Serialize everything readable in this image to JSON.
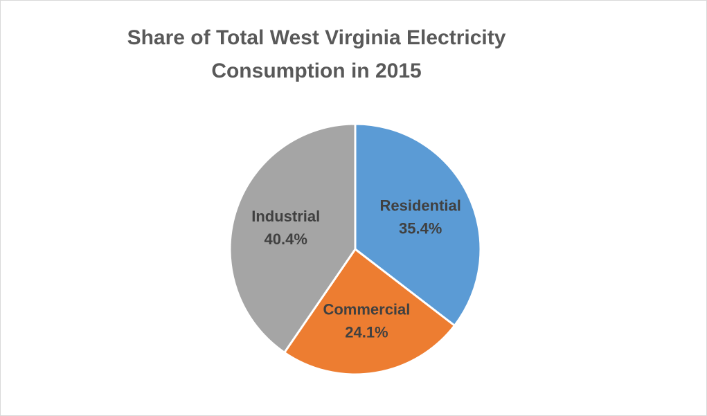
{
  "chart_data": {
    "type": "pie",
    "title": "Share of Total West Virginia Electricity Consumption in 2015",
    "categories": [
      "Residential",
      "Commercial",
      "Industrial"
    ],
    "values": [
      35.4,
      24.1,
      40.4
    ],
    "value_labels": [
      "35.4%",
      "24.1%",
      "40.4%"
    ],
    "colors": [
      "#5b9bd5",
      "#ed7d31",
      "#a5a5a5"
    ]
  }
}
